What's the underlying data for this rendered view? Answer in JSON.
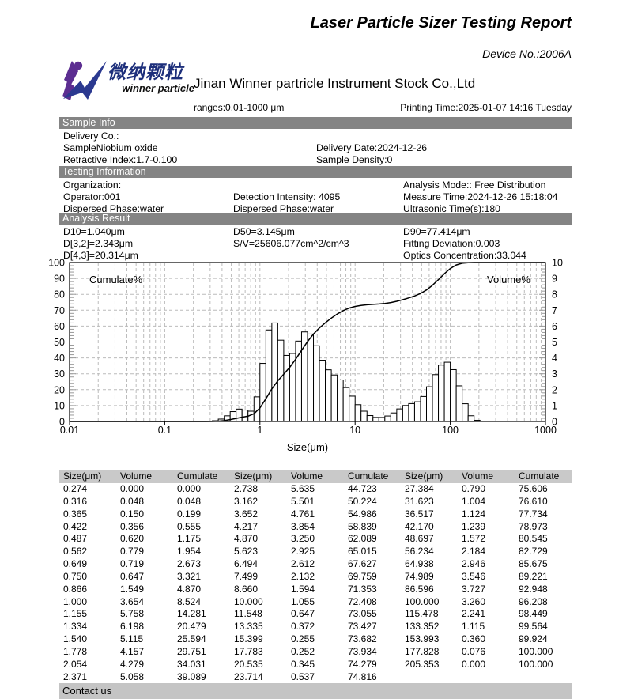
{
  "page": {
    "title": "Laser Particle Sizer Testing Report",
    "device_no": "Device No.:2006A",
    "company": "Jinan Winner partricle Instrument Stock Co.,Ltd",
    "logo_cn": "微纳颗粒",
    "logo_en": "winner particle",
    "ranges": "ranges:0.01-1000 μm",
    "printing_time": "Printing Time:2025-01-07 14:16 Tuesday",
    "contact_bar": "Contact us"
  },
  "info_sections": [
    {
      "title": "Sample Info",
      "rows": [
        [
          {
            "text": "Delivery Co.:",
            "col": 0
          }
        ],
        [
          {
            "text": "SampleNiobium oxide",
            "col": 0
          },
          {
            "text": "Delivery Date:2024-12-26",
            "col": 1
          }
        ],
        [
          {
            "text": "Retractive Index:1.7-0.100",
            "col": 0
          },
          {
            "text": "Sample Density:0",
            "col": 1
          }
        ]
      ]
    },
    {
      "title": "Testing Information",
      "rows": [
        [
          {
            "text": "Organization:",
            "col": 0
          },
          {
            "text": "Analysis Mode:: Free Distribution",
            "col": 2
          }
        ],
        [
          {
            "text": "Operator:001",
            "col": 0
          },
          {
            "text": "Detection Intensity: 4095",
            "col": 1
          },
          {
            "text": "Measure Time:2024-12-26 15:18:04",
            "col": 2
          }
        ],
        [
          {
            "text": "Dispersed Phase:water",
            "col": 0
          },
          {
            "text": "Dispersed Phase:water",
            "col": 1
          },
          {
            "text": "Ultrasonic Time(s):180",
            "col": 2
          }
        ]
      ]
    },
    {
      "title": "Analysis Result",
      "rows": [
        [
          {
            "text": "D10=1.040μm",
            "col": 0
          },
          {
            "text": "D50=3.145μm",
            "col": 1
          },
          {
            "text": "D90=77.414μm",
            "col": 2
          }
        ],
        [
          {
            "text": "D[3,2]=2.343μm",
            "col": 0
          },
          {
            "text": "S/V=25606.077cm^2/cm^3",
            "col": 1
          },
          {
            "text": "Fitting Deviation:0.003",
            "col": 2
          }
        ],
        [
          {
            "text": "D[4,3]=20.314μm",
            "col": 0
          },
          {
            "text": "Optics Concentration:33.044",
            "col": 2
          }
        ]
      ]
    }
  ],
  "chart_data": {
    "type": "bar",
    "subtype": "histogram-with-cumulative-line",
    "x_scale": "log",
    "x_range": [
      0.01,
      1000
    ],
    "x_ticks": [
      0.01,
      0.1,
      1,
      10,
      100,
      1000
    ],
    "x_tick_labels": [
      "0.01",
      "0.1",
      "1",
      "10",
      "100",
      "1000"
    ],
    "xlabel": "Size(μm)",
    "left_axis": {
      "label": "Cumulate%",
      "range": [
        0,
        100
      ],
      "tick_step": 10
    },
    "right_axis": {
      "label": "Volume%",
      "range": [
        0,
        10
      ],
      "tick_step": 1
    },
    "bar_width_ratio": 1.15478,
    "sizes": [
      0.274,
      0.316,
      0.365,
      0.422,
      0.487,
      0.562,
      0.649,
      0.75,
      0.866,
      1.0,
      1.155,
      1.334,
      1.54,
      1.778,
      2.054,
      2.371,
      2.738,
      3.162,
      3.652,
      4.217,
      4.87,
      5.623,
      6.494,
      7.499,
      8.66,
      10.0,
      11.548,
      13.335,
      15.399,
      17.783,
      20.535,
      23.714,
      27.384,
      31.623,
      36.517,
      42.17,
      48.697,
      56.234,
      64.938,
      74.989,
      86.596,
      100.0,
      115.478,
      133.352,
      153.993,
      177.828,
      205.353
    ],
    "volume": [
      0.0,
      0.048,
      0.15,
      0.356,
      0.62,
      0.779,
      0.719,
      0.647,
      1.549,
      3.654,
      5.758,
      6.198,
      5.115,
      4.157,
      4.279,
      5.058,
      5.635,
      5.501,
      4.761,
      3.854,
      3.25,
      2.925,
      2.612,
      2.132,
      1.594,
      1.055,
      0.647,
      0.372,
      0.255,
      0.252,
      0.345,
      0.537,
      0.79,
      1.004,
      1.124,
      1.239,
      1.572,
      2.184,
      2.946,
      3.546,
      3.727,
      3.26,
      2.241,
      1.115,
      0.36,
      0.076,
      0.0
    ],
    "cumulate": [
      0.0,
      0.048,
      0.199,
      0.555,
      1.175,
      1.954,
      2.673,
      3.321,
      4.87,
      8.524,
      14.281,
      20.479,
      25.594,
      29.751,
      34.031,
      39.089,
      44.723,
      50.224,
      54.986,
      58.839,
      62.089,
      65.015,
      67.627,
      69.759,
      71.353,
      72.408,
      73.055,
      73.427,
      73.682,
      73.934,
      74.279,
      74.816,
      75.606,
      76.61,
      77.734,
      78.973,
      80.545,
      82.729,
      85.675,
      89.221,
      92.948,
      96.208,
      98.449,
      99.564,
      99.924,
      100.0,
      100.0
    ]
  },
  "table": {
    "headers": [
      "Size(μm)",
      "Volume",
      "Cumulate",
      "Size(μm)",
      "Volume",
      "Cumulate",
      "Size(μm)",
      "Volume",
      "Cumulate"
    ],
    "rows": [
      [
        "0.274",
        "0.000",
        "0.000",
        "2.738",
        "5.635",
        "44.723",
        "27.384",
        "0.790",
        "75.606"
      ],
      [
        "0.316",
        "0.048",
        "0.048",
        "3.162",
        "5.501",
        "50.224",
        "31.623",
        "1.004",
        "76.610"
      ],
      [
        "0.365",
        "0.150",
        "0.199",
        "3.652",
        "4.761",
        "54.986",
        "36.517",
        "1.124",
        "77.734"
      ],
      [
        "0.422",
        "0.356",
        "0.555",
        "4.217",
        "3.854",
        "58.839",
        "42.170",
        "1.239",
        "78.973"
      ],
      [
        "0.487",
        "0.620",
        "1.175",
        "4.870",
        "3.250",
        "62.089",
        "48.697",
        "1.572",
        "80.545"
      ],
      [
        "0.562",
        "0.779",
        "1.954",
        "5.623",
        "2.925",
        "65.015",
        "56.234",
        "2.184",
        "82.729"
      ],
      [
        "0.649",
        "0.719",
        "2.673",
        "6.494",
        "2.612",
        "67.627",
        "64.938",
        "2.946",
        "85.675"
      ],
      [
        "0.750",
        "0.647",
        "3.321",
        "7.499",
        "2.132",
        "69.759",
        "74.989",
        "3.546",
        "89.221"
      ],
      [
        "0.866",
        "1.549",
        "4.870",
        "8.660",
        "1.594",
        "71.353",
        "86.596",
        "3.727",
        "92.948"
      ],
      [
        "1.000",
        "3.654",
        "8.524",
        "10.000",
        "1.055",
        "72.408",
        "100.000",
        "3.260",
        "96.208"
      ],
      [
        "1.155",
        "5.758",
        "14.281",
        "11.548",
        "0.647",
        "73.055",
        "115.478",
        "2.241",
        "98.449"
      ],
      [
        "1.334",
        "6.198",
        "20.479",
        "13.335",
        "0.372",
        "73.427",
        "133.352",
        "1.115",
        "99.564"
      ],
      [
        "1.540",
        "5.115",
        "25.594",
        "15.399",
        "0.255",
        "73.682",
        "153.993",
        "0.360",
        "99.924"
      ],
      [
        "1.778",
        "4.157",
        "29.751",
        "17.783",
        "0.252",
        "73.934",
        "177.828",
        "0.076",
        "100.000"
      ],
      [
        "2.054",
        "4.279",
        "34.031",
        "20.535",
        "0.345",
        "74.279",
        "205.353",
        "0.000",
        "100.000"
      ],
      [
        "2.371",
        "5.058",
        "39.089",
        "23.714",
        "0.537",
        "74.816",
        "",
        "",
        ""
      ]
    ]
  }
}
